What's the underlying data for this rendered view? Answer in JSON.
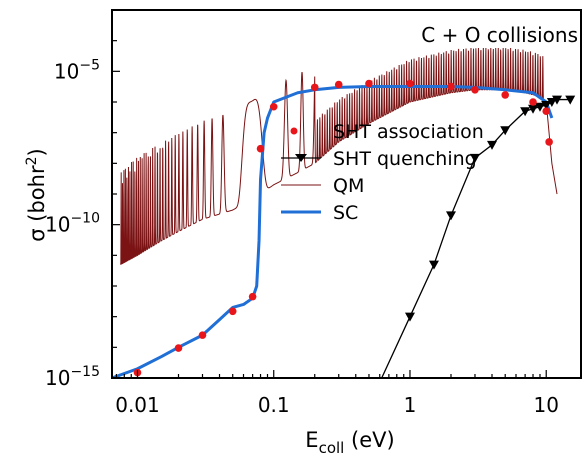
{
  "chart_data": {
    "type": "line",
    "title": "C + O collisions",
    "xlabel": {
      "main": "E",
      "sub": "coll",
      "unit": " (eV)"
    },
    "ylabel": {
      "main": "σ (bohr",
      "sup": "2",
      "end": ")"
    },
    "xscale": "log",
    "yscale": "log",
    "xlim": [
      0.0065,
      18
    ],
    "ylim": [
      1e-15,
      0.001
    ],
    "xticks": [
      {
        "value": 0.01,
        "label": "0.01"
      },
      {
        "value": 0.1,
        "label": "0.1"
      },
      {
        "value": 1,
        "label": "1"
      },
      {
        "value": 10,
        "label": "10"
      }
    ],
    "yticks": [
      {
        "value": 1e-05,
        "base": "10",
        "exp": "−5"
      },
      {
        "value": 1e-10,
        "base": "10",
        "exp": "−10"
      },
      {
        "value": 1e-15,
        "base": "10",
        "exp": "−15"
      }
    ],
    "legend_position": "right",
    "series": [
      {
        "name": "SHT association",
        "style": "markers",
        "marker": "circle",
        "color": "#e8161b",
        "x": [
          0.01,
          0.02,
          0.03,
          0.05,
          0.07,
          0.08,
          0.1,
          0.2,
          0.3,
          0.5,
          1,
          2,
          3,
          5,
          8,
          10,
          10.5
        ],
        "y": [
          1.5e-15,
          9.5e-15,
          2.5e-14,
          1.5e-13,
          4.5e-13,
          3e-08,
          7e-07,
          3e-06,
          3.7e-06,
          4e-06,
          4e-06,
          3.2e-06,
          2.5e-06,
          1.7e-06,
          1e-06,
          5e-07,
          5e-08
        ]
      },
      {
        "name": "SHT quenching",
        "style": "line-markers",
        "marker": "triangle-down",
        "color": "#000000",
        "x": [
          0.62,
          1.0,
          1.5,
          2.0,
          3.0,
          4.0,
          5.0,
          7.0,
          8.0,
          9.0,
          10.0,
          11.0,
          12.0,
          15.0
        ],
        "y": [
          1e-15,
          1e-13,
          5e-12,
          2e-10,
          1.5e-08,
          4e-08,
          1.2e-07,
          5e-07,
          6e-07,
          7e-07,
          8e-07,
          1e-06,
          1.2e-06,
          1.2e-06
        ]
      },
      {
        "name": "QM",
        "style": "line",
        "color": "#7b1213",
        "x": [
          0.0075,
          0.01,
          0.015,
          0.02,
          0.03,
          0.05,
          0.07,
          0.08,
          0.1,
          0.15,
          0.2,
          0.3,
          0.5,
          1,
          2,
          3,
          5,
          7,
          9,
          10,
          11,
          12
        ],
        "y": [
          5e-12,
          1e-11,
          3e-11,
          6e-11,
          1.5e-10,
          3e-10,
          7e-10,
          1e-09,
          2e-09,
          5e-09,
          1e-08,
          5e-08,
          2e-07,
          1e-06,
          2e-06,
          2.5e-06,
          2.5e-06,
          2e-06,
          1.5e-06,
          1e-06,
          1e-08,
          1e-09
        ]
      },
      {
        "name": "SC",
        "style": "line",
        "color": "#1f6fd6",
        "x": [
          0.0065,
          0.01,
          0.015,
          0.02,
          0.03,
          0.04,
          0.05,
          0.06,
          0.07,
          0.075,
          0.078,
          0.08,
          0.085,
          0.09,
          0.1,
          0.15,
          0.2,
          0.3,
          0.5,
          1,
          2,
          3,
          5,
          8,
          10,
          11
        ],
        "y": [
          1e-15,
          2e-15,
          5e-15,
          1e-14,
          2.5e-14,
          8e-14,
          2e-13,
          2.5e-13,
          4e-13,
          1e-12,
          3e-11,
          3e-09,
          1e-07,
          3e-07,
          1e-06,
          2e-06,
          2.5e-06,
          3e-06,
          3.2e-06,
          3.2e-06,
          3.2e-06,
          3e-06,
          2.5e-06,
          2e-06,
          1e-06,
          3e-07
        ]
      }
    ]
  }
}
